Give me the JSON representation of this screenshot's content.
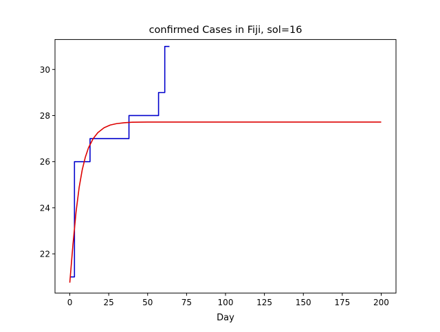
{
  "chart_data": {
    "type": "line",
    "title": "confirmed Cases in Fiji, sol=16",
    "xlabel": "Day",
    "ylabel": "",
    "xlim": [
      -9.5,
      209.5
    ],
    "ylim": [
      20.3,
      31.3
    ],
    "xticks": [
      0,
      25,
      50,
      75,
      100,
      125,
      150,
      175,
      200
    ],
    "yticks": [
      22,
      24,
      26,
      28,
      30
    ],
    "grid": false,
    "legend": "none",
    "series": [
      {
        "color": "#0000cc",
        "step": true,
        "x": [
          0,
          3,
          4,
          13,
          14,
          38,
          39,
          57,
          58,
          61,
          62,
          64
        ],
        "y": [
          21,
          21,
          26,
          26,
          27,
          27,
          28,
          28,
          29,
          29,
          31,
          31
        ]
      },
      {
        "color": "#dd0000",
        "x": [
          0,
          2,
          4,
          6,
          8,
          10,
          12,
          15,
          18,
          22,
          26,
          30,
          35,
          40,
          50,
          60,
          80,
          100,
          150,
          200
        ],
        "y": [
          20.75,
          22.38,
          23.81,
          24.88,
          25.65,
          26.2,
          26.6,
          27.0,
          27.26,
          27.47,
          27.59,
          27.65,
          27.69,
          27.71,
          27.72,
          27.72,
          27.72,
          27.72,
          27.72,
          27.72
        ]
      }
    ]
  }
}
